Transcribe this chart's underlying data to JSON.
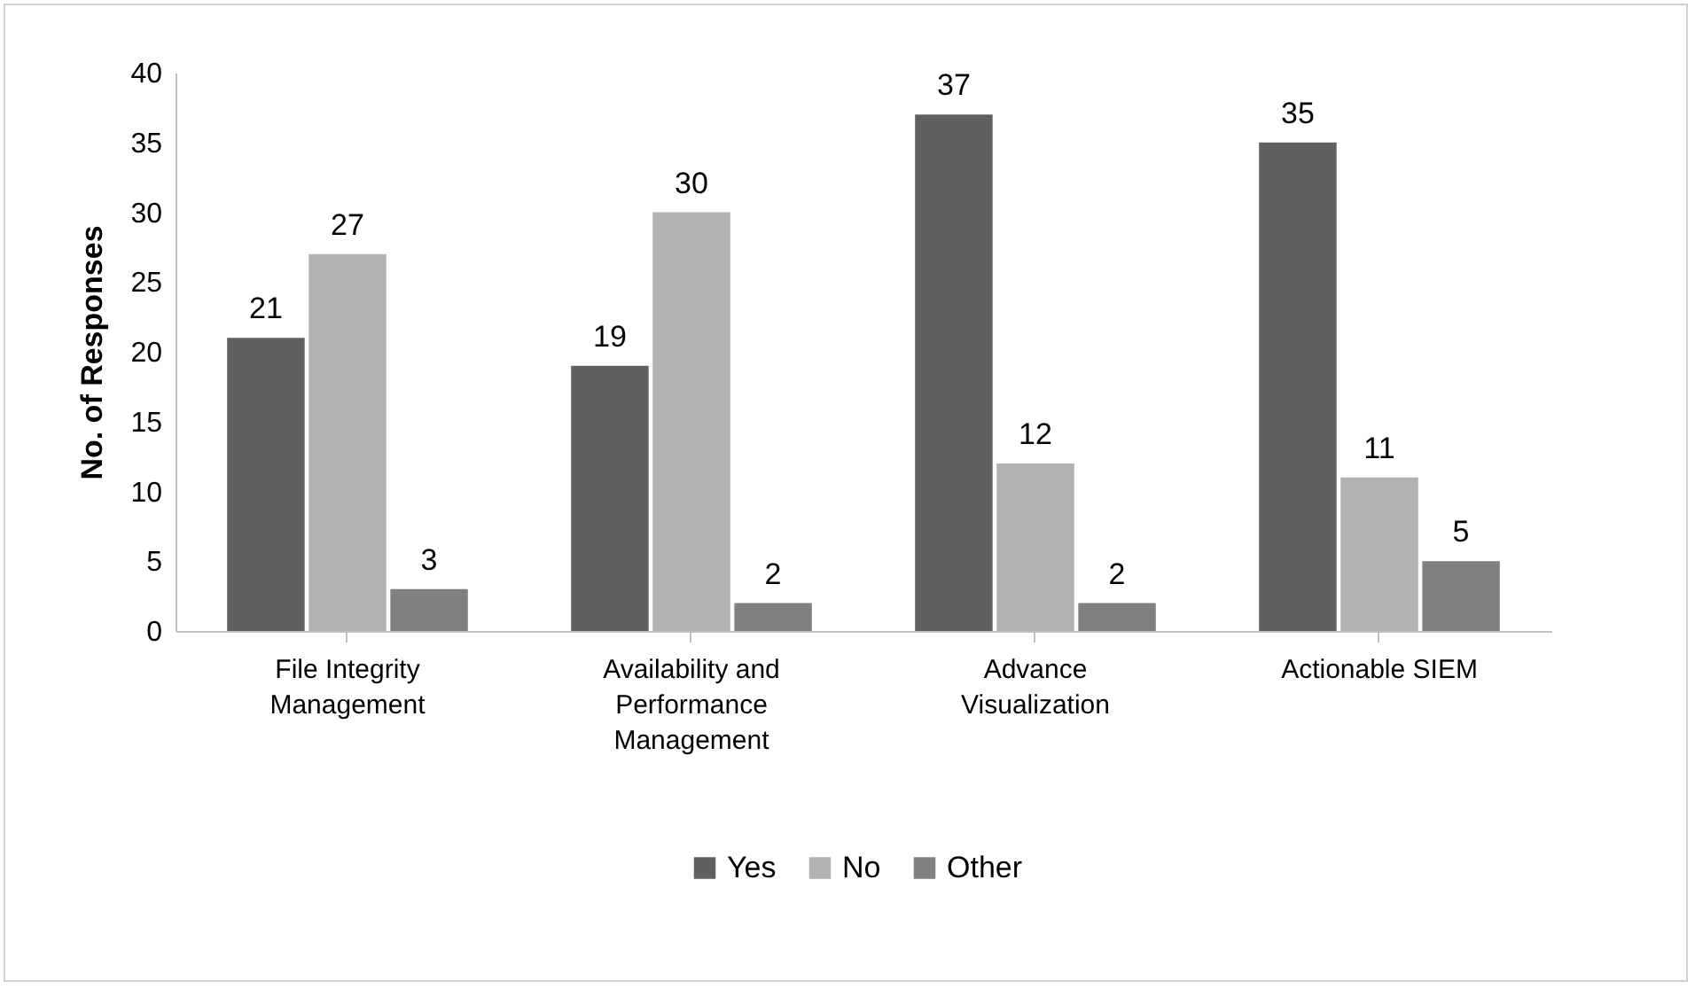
{
  "chart_data": {
    "type": "bar",
    "ylabel": "No. of Responses",
    "categories": [
      "File Integrity Management",
      "Availability and Performance Management",
      "Advance Visualization",
      "Actionable SIEM"
    ],
    "series": [
      {
        "name": "Yes",
        "color": "#606060",
        "values": [
          21,
          19,
          37,
          35
        ]
      },
      {
        "name": "No",
        "color": "#b2b2b2",
        "values": [
          27,
          30,
          12,
          11
        ]
      },
      {
        "name": "Other",
        "color": "#808080",
        "values": [
          3,
          2,
          2,
          5
        ]
      }
    ],
    "ylim": [
      0,
      40
    ],
    "yticks": [
      0,
      5,
      10,
      15,
      20,
      25,
      30,
      35,
      40
    ],
    "grid": false,
    "legend": "bottom",
    "data_labels": true
  }
}
